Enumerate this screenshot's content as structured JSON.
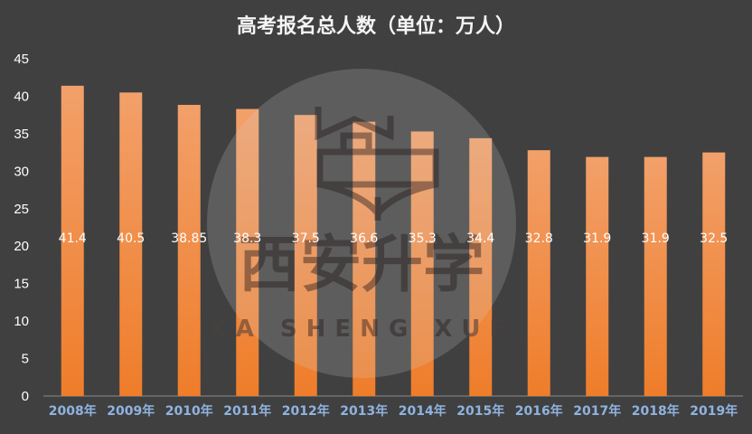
{
  "chart_data": {
    "type": "bar",
    "title": "高考报名总人数（单位：万人）",
    "categories": [
      "2008年",
      "2009年",
      "2010年",
      "2011年",
      "2012年",
      "2013年",
      "2014年",
      "2015年",
      "2016年",
      "2017年",
      "2018年",
      "2019年"
    ],
    "values": [
      41.4,
      40.5,
      38.85,
      38.3,
      37.5,
      36.6,
      35.3,
      34.4,
      32.8,
      31.9,
      31.9,
      32.5
    ],
    "data_labels": [
      "41.4",
      "40.5",
      "38.85",
      "38.3",
      "37.5",
      "36.6",
      "35.3",
      "34.4",
      "32.8",
      "31.9",
      "31.9",
      "32.5"
    ],
    "yticks": [
      0,
      5,
      10,
      15,
      20,
      25,
      30,
      35,
      40,
      45
    ],
    "ylim": [
      0,
      45
    ],
    "grid": false,
    "legend": "none",
    "colors": {
      "background": "#404040",
      "bar_top": "#f2a06a",
      "bar_bottom": "#ef7d2a",
      "title": "#f5f5f5",
      "tick": "#ffffff",
      "xlabel": "#8fb3e0",
      "data_label": "#ffffff"
    }
  },
  "watermark": {
    "text_cn": "西安升学",
    "text_en": "XA SHENG XUE",
    "icon": "school-book-icon"
  }
}
